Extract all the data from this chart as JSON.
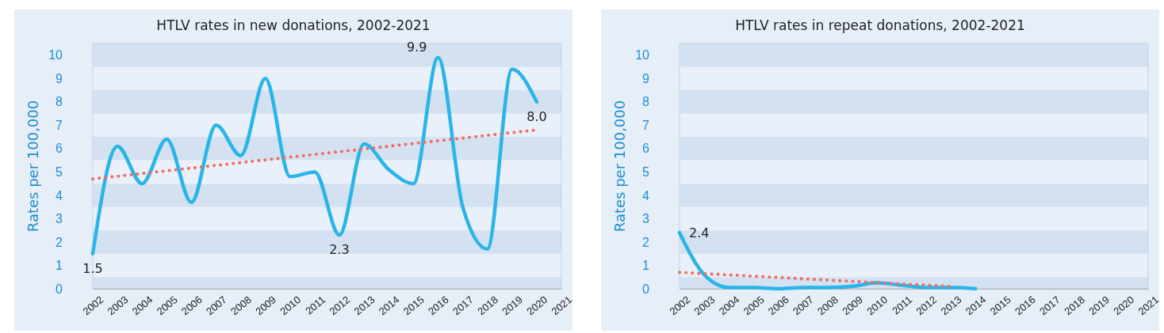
{
  "chart_data": [
    {
      "type": "line",
      "title": "HTLV rates in new donations, 2002-2021",
      "ylabel": "Rates per 100,000",
      "xlim": [
        2002,
        2021
      ],
      "xticks": [
        2002,
        2003,
        2004,
        2005,
        2006,
        2007,
        2008,
        2009,
        2010,
        2011,
        2012,
        2013,
        2014,
        2015,
        2016,
        2017,
        2018,
        2019,
        2020,
        2021
      ],
      "ylim": [
        0,
        10.5
      ],
      "yticks": [
        0,
        1,
        2,
        3,
        4,
        5,
        6,
        7,
        8,
        9,
        10
      ],
      "grid": "y",
      "series": [
        {
          "color": "#29b5e8",
          "line_style": "solid",
          "x": [
            2002,
            2003,
            2004,
            2005,
            2006,
            2007,
            2008,
            2009,
            2010,
            2011,
            2012,
            2013,
            2014,
            2015,
            2016,
            2017,
            2018,
            2019,
            2020
          ],
          "values": [
            1.5,
            6.1,
            4.5,
            6.4,
            3.7,
            7.0,
            5.7,
            9.0,
            4.8,
            5.0,
            2.3,
            6.2,
            5.1,
            4.5,
            9.9,
            3.5,
            1.7,
            9.4,
            8.0
          ],
          "value_labels": [
            "1.5",
            null,
            null,
            null,
            null,
            null,
            null,
            null,
            null,
            null,
            "2.3",
            null,
            null,
            null,
            "9.9",
            null,
            null,
            null,
            "8.0"
          ]
        },
        {
          "color": "#f26d63",
          "line_style": "dotted",
          "x": [
            2002,
            2020
          ],
          "values": [
            4.7,
            6.8
          ]
        }
      ]
    },
    {
      "type": "line",
      "title": "HTLV rates in repeat donations, 2002-2021",
      "ylabel": "Rates per 100,000",
      "xlim": [
        2002,
        2021
      ],
      "xticks": [
        2002,
        2003,
        2004,
        2005,
        2006,
        2007,
        2008,
        2009,
        2010,
        2011,
        2012,
        2013,
        2014,
        2015,
        2016,
        2017,
        2018,
        2019,
        2020,
        2021
      ],
      "ylim": [
        0,
        10.5
      ],
      "yticks": [
        0,
        1,
        2,
        3,
        4,
        5,
        6,
        7,
        8,
        9,
        10
      ],
      "grid": "y",
      "series": [
        {
          "color": "#29b5e8",
          "line_style": "solid",
          "x": [
            2002,
            2003,
            2004,
            2005,
            2006,
            2007,
            2008,
            2009,
            2010,
            2011,
            2012,
            2013,
            2014
          ],
          "values": [
            2.4,
            0.6,
            0.05,
            0.05,
            0.0,
            0.05,
            0.05,
            0.1,
            0.25,
            0.15,
            0.05,
            0.05,
            0.0
          ],
          "value_labels": [
            "2.4",
            null,
            null,
            null,
            null,
            null,
            null,
            null,
            null,
            null,
            null,
            null,
            null
          ]
        },
        {
          "color": "#f26d63",
          "line_style": "dotted",
          "x": [
            2002,
            2013
          ],
          "values": [
            0.7,
            0.1
          ]
        }
      ]
    }
  ]
}
